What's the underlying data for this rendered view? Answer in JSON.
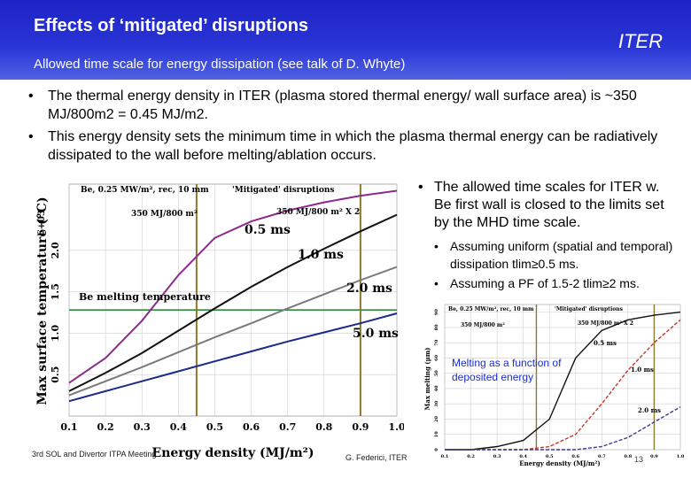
{
  "header": {
    "title": "Effects of ‘mitigated’ disruptions",
    "subtitle": "Allowed time scale for energy dissipation (see talk of D. Whyte)",
    "iter": "ITER",
    "bg_color": "#2a35d6"
  },
  "bullets": [
    "The thermal energy density in ITER (plasma stored thermal energy/ wall surface area) is ~350 MJ/800m2 = 0.45 MJ/m2.",
    "This energy density sets the minimum time in which the plasma thermal energy can be radiatively dissipated to the wall before melting/ablation occurs."
  ],
  "right_text": {
    "main": "The allowed time scales for ITER w. Be first wall is closed to the limits set by the MHD time scale.",
    "sub": [
      "Assuming uniform (spatial and temporal) dissipation tlim≥0.5 ms.",
      "Assuming a PF of 1.5-2 tlim≥2 ms."
    ]
  },
  "left_plot": {
    "header_left": "Be, 0.25 MW/m², rec, 10 mm",
    "header_right": "'Mitigated' disruptions",
    "label_350": "350 MJ/800 m²",
    "label_350x2": "350 MJ/800 m² X 2",
    "series_labels": [
      "0.5 ms",
      "1.0 ms",
      "2.0 ms",
      "5.0 ms"
    ],
    "melt_label": "Be melting temperature",
    "xlabel": "Energy density (MJ/m²)",
    "ylabel": "Max surface temperature (°C)",
    "y_exp": "E+03",
    "xticks": [
      "0.1",
      "0.2",
      "0.3",
      "0.4",
      "0.5",
      "0.6",
      "0.7",
      "0.8",
      "0.9",
      "1.0"
    ],
    "yticks": [
      "0.5",
      "1.0",
      "1.5",
      "2.0"
    ]
  },
  "right_plot": {
    "header_left": "Be, 0.25 MW/m², rec, 10 mm",
    "header_right": "'Mitigated' disruptions",
    "label_350": "350 MJ/800 m²",
    "label_350x2": "350 MJ/800 m² X 2",
    "series_labels": [
      "0.5 ms",
      "1.0 ms",
      "2.0 ms"
    ],
    "annotation": "Melting as a function of deposited energy",
    "xlabel": "Energy density (MJ/m²)",
    "ylabel": "Max melting (µm)",
    "xticks": [
      "0.1",
      "0.2",
      "0.3",
      "0.4",
      "0.5",
      "0.6",
      "0.7",
      "0.8",
      "0.9",
      "1.0"
    ],
    "yticks": [
      "0",
      "10",
      "20",
      "30",
      "40",
      "50",
      "60",
      "70",
      "80",
      "90"
    ]
  },
  "chart_data": [
    {
      "type": "line",
      "x": [
        0.1,
        0.2,
        0.3,
        0.4,
        0.5,
        0.6,
        0.7,
        0.8,
        0.9,
        1.0
      ],
      "series": [
        {
          "name": "0.5 ms",
          "values": [
            400,
            700,
            1150,
            1700,
            2150,
            2350,
            2480,
            2580,
            2660,
            2720
          ],
          "color": "#8a2c8c"
        },
        {
          "name": "1.0 ms",
          "values": [
            300,
            520,
            760,
            1030,
            1300,
            1560,
            1800,
            2020,
            2230,
            2430
          ],
          "color": "#111111"
        },
        {
          "name": "2.0 ms",
          "values": [
            250,
            420,
            590,
            770,
            950,
            1120,
            1300,
            1470,
            1640,
            1800
          ],
          "color": "#7a7a7a"
        },
        {
          "name": "5.0 ms",
          "values": [
            180,
            300,
            420,
            540,
            660,
            780,
            900,
            1010,
            1120,
            1240
          ],
          "color": "#1a2a8a"
        }
      ],
      "melt_temperature": 1280,
      "vlines": [
        0.45,
        0.9
      ],
      "xlim": [
        0.1,
        1.0
      ],
      "ylim": [
        0,
        2800
      ],
      "xlabel": "Energy density (MJ/m²)",
      "ylabel": "Max surface temperature (°C)"
    },
    {
      "type": "line",
      "x": [
        0.1,
        0.2,
        0.3,
        0.4,
        0.5,
        0.6,
        0.7,
        0.8,
        0.9,
        1.0
      ],
      "series": [
        {
          "name": "0.5 ms",
          "values": [
            0,
            0,
            2,
            6,
            20,
            60,
            78,
            85,
            88,
            90
          ],
          "color": "#111111"
        },
        {
          "name": "1.0 ms",
          "values": [
            0,
            0,
            0,
            0,
            2,
            10,
            30,
            52,
            70,
            85
          ],
          "color": "#c0392b"
        },
        {
          "name": "2.0 ms",
          "values": [
            0,
            0,
            0,
            0,
            0,
            0,
            2,
            8,
            18,
            28
          ],
          "color": "#3a3a9a"
        }
      ],
      "vlines": [
        0.45,
        0.9
      ],
      "xlim": [
        0.1,
        1.0
      ],
      "ylim": [
        0,
        95
      ],
      "xlabel": "Energy density (MJ/m²)",
      "ylabel": "Max melting (µm)"
    }
  ],
  "footer": {
    "meeting": "3rd SOL and Divertor ITPA Meeting",
    "author": "G. Federici, ITER",
    "page": "13"
  }
}
